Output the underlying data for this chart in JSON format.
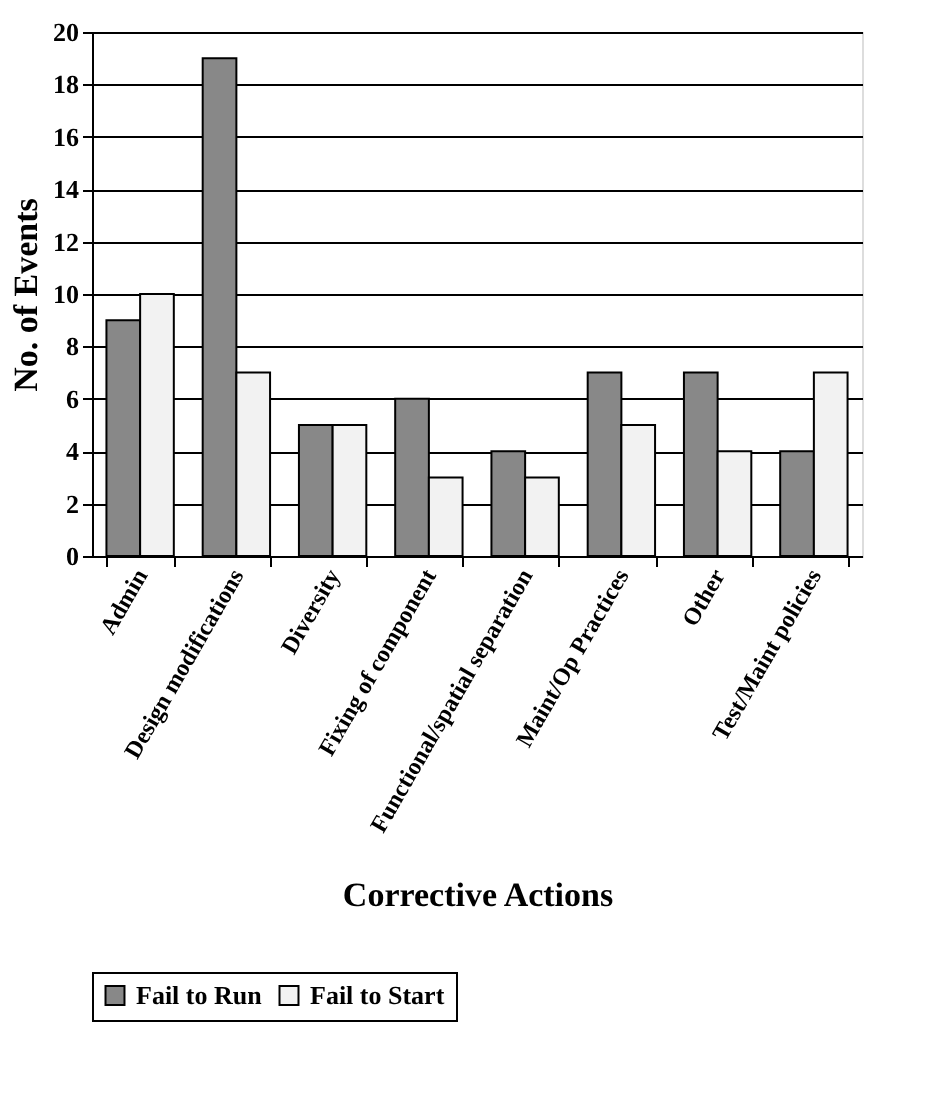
{
  "chart_data": {
    "type": "bar",
    "xlabel": "Corrective Actions",
    "ylabel": "No. of Events",
    "categories": [
      "Admin",
      "Design modifications",
      "Diversity",
      "Fixing of component",
      "Functional/spatial separation",
      "Maint/Op Practices",
      "Other",
      "Test/Maint policies"
    ],
    "series": [
      {
        "name": "Fail to Run",
        "color": "#888888",
        "values": [
          9,
          19,
          5,
          6,
          4,
          7,
          7,
          4
        ]
      },
      {
        "name": "Fail to Start",
        "color": "#f2f2f2",
        "values": [
          10,
          7,
          5,
          3,
          3,
          5,
          4,
          7
        ]
      }
    ],
    "ylim": [
      0,
      20
    ],
    "yticks": [
      0,
      2,
      4,
      6,
      8,
      10,
      12,
      14,
      16,
      18,
      20
    ],
    "grid": "y",
    "legend": "bottom"
  }
}
